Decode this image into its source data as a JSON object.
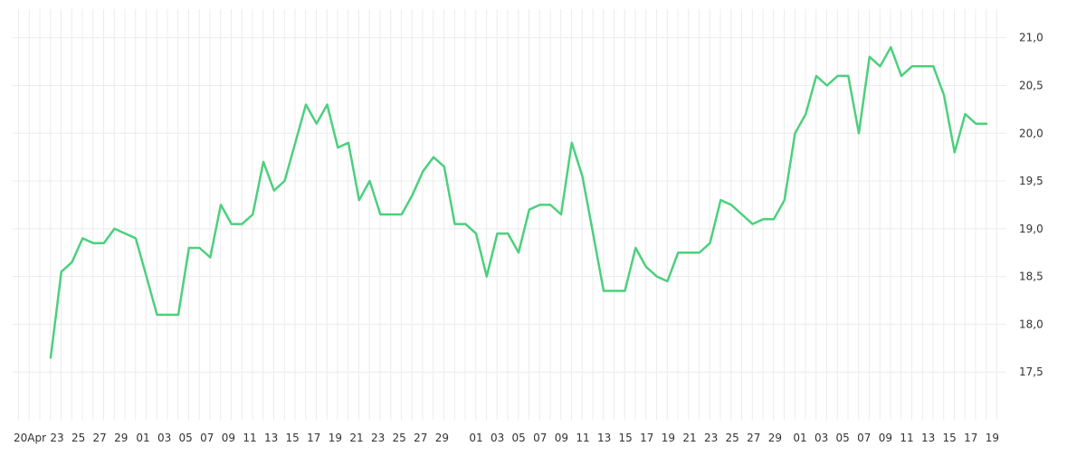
{
  "chart_data": {
    "type": "line",
    "grid": true,
    "y_axis_position": "right",
    "line_color": "#4cd07d",
    "grid_color": "#ececec",
    "ylim": [
      17.0,
      21.3
    ],
    "y_ticks": [
      "17,5",
      "18,0",
      "18,5",
      "19,0",
      "19,5",
      "20,0",
      "20,5",
      "21,0"
    ],
    "y_tick_values": [
      17.5,
      18.0,
      18.5,
      19.0,
      19.5,
      20.0,
      20.5,
      21.0
    ],
    "x_tick_labels": [
      "20Apr",
      "23",
      "25",
      "27",
      "29",
      "01",
      "03",
      "05",
      "07",
      "09",
      "11",
      "13",
      "15",
      "17",
      "19",
      "21",
      "23",
      "25",
      "27",
      "29",
      "01",
      "03",
      "05",
      "07",
      "09",
      "11",
      "13",
      "15",
      "17",
      "19",
      "21",
      "23",
      "25",
      "27",
      "29",
      "01",
      "03",
      "05",
      "07",
      "09",
      "11",
      "13",
      "15",
      "17",
      "19"
    ],
    "series": [
      {
        "values": [
          17.65,
          18.55,
          18.65,
          18.9,
          18.85,
          18.85,
          19.0,
          18.95,
          18.9,
          18.5,
          18.1,
          18.1,
          18.1,
          18.8,
          18.8,
          18.7,
          19.25,
          19.05,
          19.05,
          19.15,
          19.7,
          19.4,
          19.5,
          19.9,
          20.3,
          20.1,
          20.3,
          19.85,
          19.9,
          19.3,
          19.5,
          19.15,
          19.15,
          19.15,
          19.35,
          19.6,
          19.75,
          19.65,
          19.05,
          19.05,
          18.95,
          18.5,
          18.95,
          18.95,
          18.75,
          19.2,
          19.25,
          19.25,
          19.15,
          19.9,
          19.55,
          18.95,
          18.35,
          18.35,
          18.35,
          18.8,
          18.6,
          18.5,
          18.45,
          18.75,
          18.75,
          18.75,
          18.85,
          19.3,
          19.25,
          19.15,
          19.05,
          19.1,
          19.1,
          19.3,
          20.0,
          20.2,
          20.6,
          20.5,
          20.6,
          20.6,
          20.0,
          20.8,
          20.7,
          20.9,
          20.6,
          20.7,
          20.7,
          20.7,
          20.4,
          19.8,
          20.2,
          20.1,
          20.1
        ]
      }
    ]
  }
}
